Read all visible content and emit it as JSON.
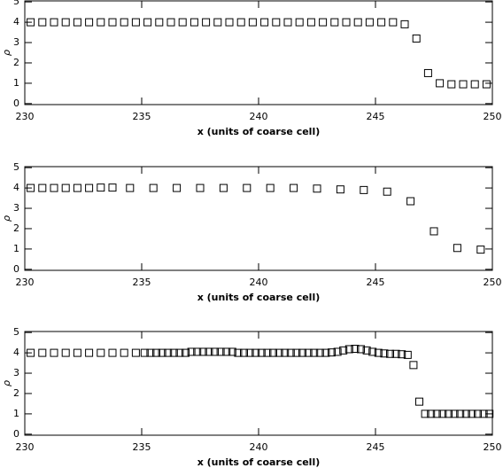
{
  "chart_data": [
    {
      "type": "scatter",
      "xlabel": "x (units of coarse cell)",
      "ylabel": "ρ",
      "color": "#000000",
      "xlim": [
        230,
        250
      ],
      "ylim": [
        -0.05,
        5.05
      ],
      "xticks": [
        230,
        235,
        240,
        245,
        250
      ],
      "yticks": [
        0,
        1,
        2,
        3,
        4,
        5
      ],
      "x": [
        230.25,
        230.75,
        231.25,
        231.75,
        232.25,
        232.75,
        233.25,
        233.75,
        234.25,
        234.75,
        235.25,
        235.75,
        236.25,
        236.75,
        237.25,
        237.75,
        238.25,
        238.75,
        239.25,
        239.75,
        240.25,
        240.75,
        241.25,
        241.75,
        242.25,
        242.75,
        243.25,
        243.75,
        244.25,
        244.75,
        245.25,
        245.75,
        246.25,
        246.75,
        247.25,
        247.75,
        248.25,
        248.75,
        249.25,
        249.75
      ],
      "values": [
        4,
        4,
        4,
        4,
        4,
        4,
        4,
        4,
        4,
        4,
        4,
        4,
        4,
        4,
        4,
        4,
        4,
        4,
        4,
        4,
        4,
        4,
        4,
        4,
        4,
        4,
        4,
        4,
        4,
        4,
        4,
        4,
        3.9,
        3.2,
        1.5,
        1.0,
        0.95,
        0.95,
        0.95,
        0.95
      ]
    },
    {
      "type": "scatter",
      "xlabel": "x (units of coarse cell)",
      "ylabel": "ρ",
      "color": "#000000",
      "xlim": [
        230,
        250
      ],
      "ylim": [
        -0.05,
        5.05
      ],
      "xticks": [
        230,
        235,
        240,
        245,
        250
      ],
      "yticks": [
        0,
        1,
        2,
        3,
        4,
        5
      ],
      "x": [
        230.25,
        230.75,
        231.25,
        231.75,
        232.25,
        232.75,
        233.25,
        233.75,
        234.5,
        235.5,
        236.5,
        237.5,
        238.5,
        239.5,
        240.5,
        241.5,
        242.5,
        243.5,
        244.5,
        245.5,
        246.5,
        247.5,
        248.5,
        249.5
      ],
      "values": [
        4,
        4,
        4,
        4,
        4,
        4,
        4.02,
        4.02,
        4,
        4,
        4,
        4,
        4,
        4,
        4,
        4,
        3.97,
        3.93,
        3.9,
        3.82,
        3.35,
        1.87,
        1.05,
        0.97
      ]
    },
    {
      "type": "scatter",
      "xlabel": "x (units of coarse cell)",
      "ylabel": "ρ",
      "color": "#000000",
      "xlim": [
        230,
        250
      ],
      "ylim": [
        -0.05,
        5.05
      ],
      "xticks": [
        230,
        235,
        240,
        245,
        250
      ],
      "yticks": [
        0,
        1,
        2,
        3,
        4,
        5
      ],
      "x": [
        230.25,
        230.75,
        231.25,
        231.75,
        232.25,
        232.75,
        233.25,
        233.75,
        234.25,
        234.75,
        235.125,
        235.375,
        235.625,
        235.875,
        236.125,
        236.375,
        236.625,
        236.875,
        237.125,
        237.375,
        237.625,
        237.875,
        238.125,
        238.375,
        238.625,
        238.875,
        239.125,
        239.375,
        239.625,
        239.875,
        240.125,
        240.375,
        240.625,
        240.875,
        241.125,
        241.375,
        241.625,
        241.875,
        242.125,
        242.375,
        242.625,
        242.875,
        243.125,
        243.375,
        243.625,
        243.875,
        244.125,
        244.375,
        244.625,
        244.875,
        245.125,
        245.375,
        245.625,
        245.875,
        246.125,
        246.375,
        246.625,
        246.875,
        247.125,
        247.375,
        247.625,
        247.875,
        248.125,
        248.375,
        248.625,
        248.875,
        249.125,
        249.375,
        249.625,
        249.875
      ],
      "values": [
        4,
        4,
        4,
        4,
        4,
        4,
        4,
        4,
        4,
        4,
        4,
        4,
        4,
        4,
        4,
        4,
        4,
        4,
        4.05,
        4.05,
        4.05,
        4.05,
        4.05,
        4.05,
        4.05,
        4.05,
        4,
        4,
        4,
        4,
        4,
        4,
        4,
        4,
        4,
        4,
        4,
        4,
        4,
        4,
        4,
        4,
        4.02,
        4.05,
        4.12,
        4.18,
        4.2,
        4.18,
        4.12,
        4.05,
        4,
        3.97,
        3.95,
        3.95,
        3.93,
        3.9,
        3.4,
        1.6,
        1,
        1,
        1,
        1,
        1,
        1,
        1,
        1,
        1,
        1,
        1,
        1
      ]
    }
  ]
}
